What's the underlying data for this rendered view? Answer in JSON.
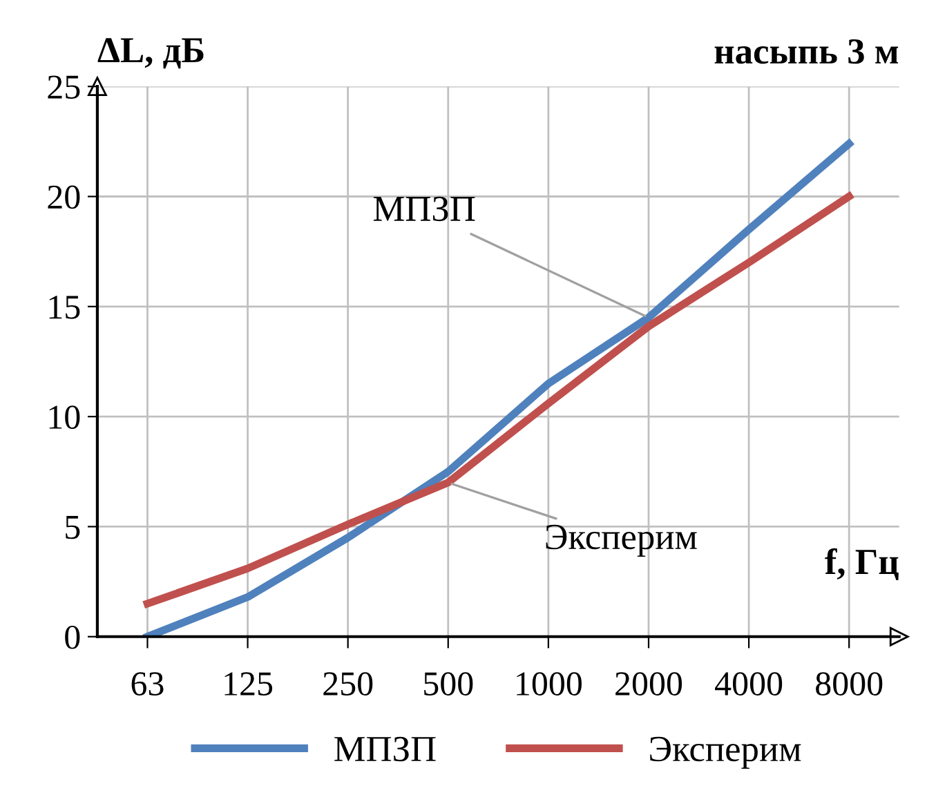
{
  "chart_data": {
    "type": "line",
    "title": "насыпь 3 м",
    "ylabel": "ΔL, дБ",
    "xlabel": "f, Гц",
    "categories": [
      "63",
      "125",
      "250",
      "500",
      "1000",
      "2000",
      "4000",
      "8000"
    ],
    "series": [
      {
        "name": "МПЗП",
        "color": "#4f81bd",
        "values": [
          0,
          1.8,
          4.5,
          7.5,
          11.5,
          14.5,
          18.5,
          22.4
        ]
      },
      {
        "name": "Эксперим",
        "color": "#c0504d",
        "values": [
          1.5,
          3.1,
          5.1,
          7.0,
          10.6,
          14.1,
          17.0,
          20.0
        ]
      }
    ],
    "annotations": [
      {
        "text": "МПЗП",
        "x": "2000",
        "y": 14.5
      },
      {
        "text": "Эксперим",
        "x": "500",
        "y": 7.0
      }
    ],
    "ylim": [
      0,
      25
    ],
    "yticks": [
      0,
      5,
      10,
      15,
      20,
      25
    ],
    "grid": true,
    "legend": "bottom",
    "marker": "none",
    "line_style": "solid"
  }
}
